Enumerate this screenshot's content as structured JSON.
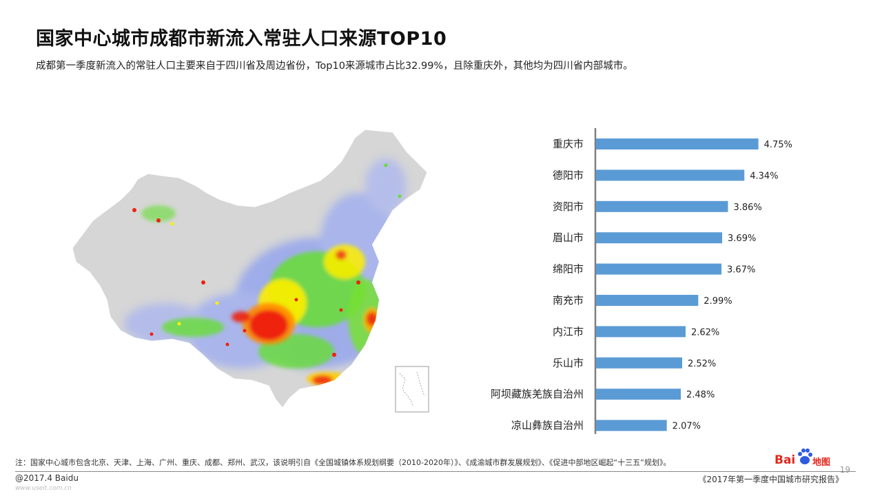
{
  "header": {
    "title": "国家中心城市成都市新流入常驻人口来源TOP10",
    "subtitle": "成都第一季度新流入的常驻人口主要来自于四川省及周边省份，Top10来源城市占比32.99%，且除重庆外，其他均为四川省内部城市。"
  },
  "chart_data": {
    "type": "bar",
    "orientation": "horizontal",
    "categories": [
      "重庆市",
      "德阳市",
      "资阳市",
      "眉山市",
      "绵阳市",
      "南充市",
      "内江市",
      "乐山市",
      "阿坝藏族羌族自治州",
      "凉山彝族自治州"
    ],
    "values": [
      4.75,
      4.34,
      3.86,
      3.69,
      3.67,
      2.99,
      2.62,
      2.52,
      2.48,
      2.07
    ],
    "value_labels": [
      "4.75%",
      "4.34%",
      "3.86%",
      "3.69%",
      "3.67%",
      "2.99%",
      "2.62%",
      "2.52%",
      "2.48%",
      "2.07%"
    ],
    "xlim": [
      0,
      5
    ],
    "grid": false,
    "bar_color": "#5b9bd5"
  },
  "footer": {
    "note": "注：国家中心城市包含北京、天津、上海、广州、重庆、成都、郑州、武汉，该说明引自《全国城镇体系规划纲要（2010-2020年）》、《成渝城市群发展规划》、《促进中部地区崛起“十三五”规划》。",
    "copyright": "@2017.4 Baidu",
    "watermark": "www.useit.com.cn",
    "report": "《2017年第一季度中国城市研究报告》",
    "page_number": "19",
    "logo_text_left": "Bai",
    "logo_text_right": "地图"
  },
  "colors": {
    "map_land": "#d6d6d6",
    "heat_low": "#8c9ff0",
    "heat_mid": "#66dd33",
    "heat_high": "#ffee00",
    "heat_peak": "#ee2211",
    "brand": "#e1261c"
  }
}
